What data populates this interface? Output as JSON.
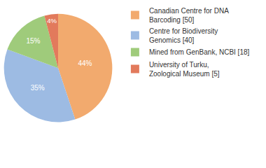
{
  "chart_data": {
    "type": "pie",
    "categories": [
      "Canadian Centre for DNA Barcoding [50]",
      "Centre for Biodiversity Genomics [40]",
      "Mined from GenBank, NCBI [18]",
      "University of Turku, Zoological Museum [5]"
    ],
    "values": [
      44,
      35,
      15,
      4
    ],
    "value_labels": [
      "44%",
      "35%",
      "15%",
      "4%"
    ],
    "colors": [
      "#f2aa6e",
      "#9dbbe3",
      "#9fcb7b",
      "#e27a5c"
    ],
    "data_labels": true,
    "legend": "top right"
  }
}
